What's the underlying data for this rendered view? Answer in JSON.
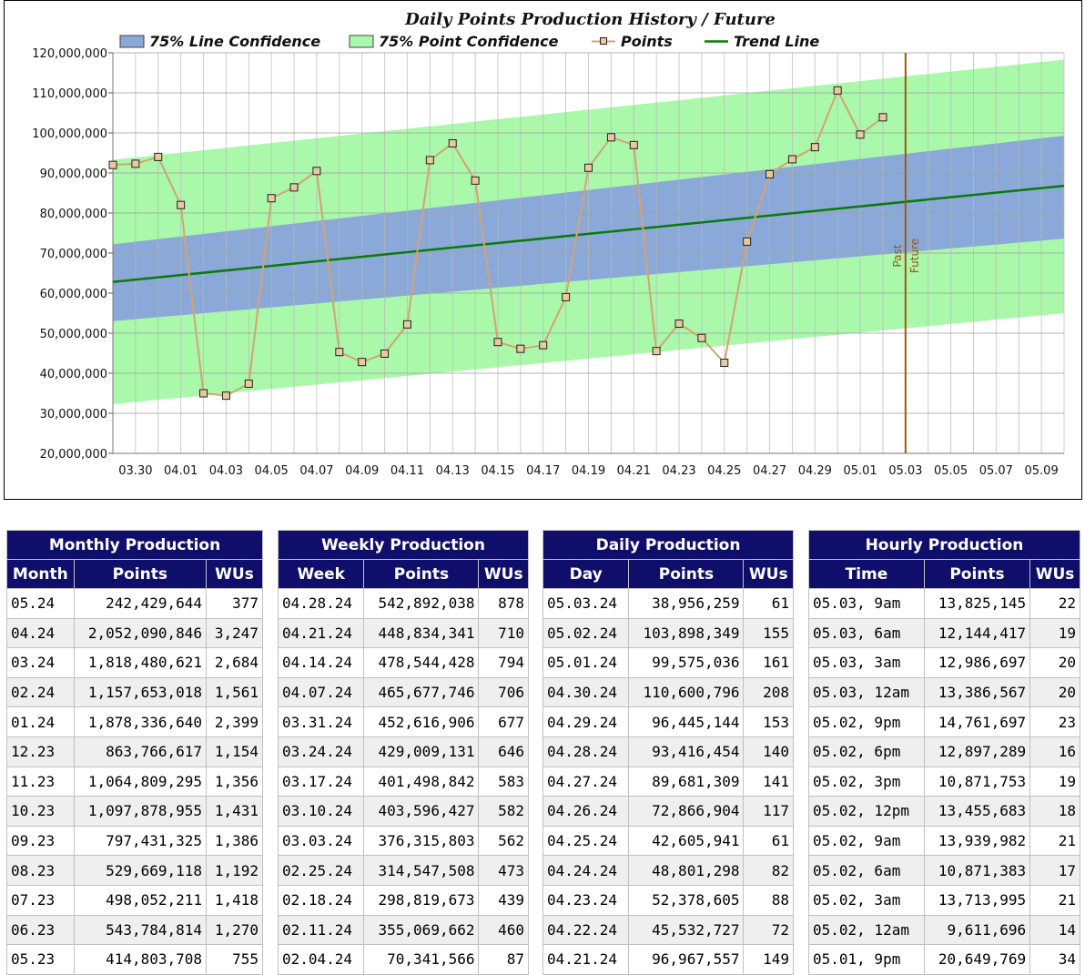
{
  "chart_data": {
    "type": "line",
    "title": "Daily Points Production History / Future",
    "legend": [
      "75% Line Confidence",
      "75% Point Confidence",
      "Points",
      "Trend Line"
    ],
    "colors": {
      "line_band": "#8aa9d8",
      "point_band": "#aaf8aa",
      "points": "#d4a373",
      "trend": "#0a7a0a",
      "divider": "#9c5a10"
    },
    "ylim": [
      20000000,
      120000000
    ],
    "yticks": [
      "20,000,000",
      "30,000,000",
      "40,000,000",
      "50,000,000",
      "60,000,000",
      "70,000,000",
      "80,000,000",
      "90,000,000",
      "100,000,000",
      "110,000,000",
      "120,000,000"
    ],
    "xlabels": [
      "03.30",
      "04.01",
      "04.03",
      "04.05",
      "04.07",
      "04.09",
      "04.11",
      "04.13",
      "04.15",
      "04.17",
      "04.19",
      "04.21",
      "04.23",
      "04.25",
      "04.27",
      "04.29",
      "05.01",
      "05.03",
      "05.05",
      "05.07",
      "05.09"
    ],
    "day_count": 42,
    "divider_day": 35,
    "past_label": "Past",
    "future_label": "Future",
    "points": [
      92000000,
      92300000,
      94000000,
      82000000,
      35000000,
      34400000,
      37400000,
      83700000,
      86400000,
      90500000,
      45300000,
      42800000,
      44900000,
      52200000,
      93200000,
      97400000,
      88100000,
      47800000,
      46100000,
      47000000,
      59000000,
      91300000,
      98900000,
      96967557,
      45532727,
      52378605,
      48801298,
      42605941,
      72866904,
      89681309,
      93416454,
      96445144,
      110600796,
      99575036,
      103898349
    ],
    "trend": {
      "start": 62800000,
      "end": 86800000
    },
    "line_band": {
      "lower_start": 53000000,
      "lower_end": 73600000,
      "upper_start": 72200000,
      "upper_end": 99300000
    },
    "point_band": {
      "lower_start": 32300000,
      "lower_end": 55000000,
      "upper_start": 93300000,
      "upper_end": 118300000
    }
  },
  "tables": {
    "monthly": {
      "title": "Monthly Production",
      "headers": [
        "Month",
        "Points",
        "WUs"
      ],
      "rows": [
        [
          "05.24",
          "242,429,644",
          "377"
        ],
        [
          "04.24",
          "2,052,090,846",
          "3,247"
        ],
        [
          "03.24",
          "1,818,480,621",
          "2,684"
        ],
        [
          "02.24",
          "1,157,653,018",
          "1,561"
        ],
        [
          "01.24",
          "1,878,336,640",
          "2,399"
        ],
        [
          "12.23",
          "863,766,617",
          "1,154"
        ],
        [
          "11.23",
          "1,064,809,295",
          "1,356"
        ],
        [
          "10.23",
          "1,097,878,955",
          "1,431"
        ],
        [
          "09.23",
          "797,431,325",
          "1,386"
        ],
        [
          "08.23",
          "529,669,118",
          "1,192"
        ],
        [
          "07.23",
          "498,052,211",
          "1,418"
        ],
        [
          "06.23",
          "543,784,814",
          "1,270"
        ],
        [
          "05.23",
          "414,803,708",
          "755"
        ]
      ]
    },
    "weekly": {
      "title": "Weekly Production",
      "headers": [
        "Week",
        "Points",
        "WUs"
      ],
      "rows": [
        [
          "04.28.24",
          "542,892,038",
          "878"
        ],
        [
          "04.21.24",
          "448,834,341",
          "710"
        ],
        [
          "04.14.24",
          "478,544,428",
          "794"
        ],
        [
          "04.07.24",
          "465,677,746",
          "706"
        ],
        [
          "03.31.24",
          "452,616,906",
          "677"
        ],
        [
          "03.24.24",
          "429,009,131",
          "646"
        ],
        [
          "03.17.24",
          "401,498,842",
          "583"
        ],
        [
          "03.10.24",
          "403,596,427",
          "582"
        ],
        [
          "03.03.24",
          "376,315,803",
          "562"
        ],
        [
          "02.25.24",
          "314,547,508",
          "473"
        ],
        [
          "02.18.24",
          "298,819,673",
          "439"
        ],
        [
          "02.11.24",
          "355,069,662",
          "460"
        ],
        [
          "02.04.24",
          "70,341,566",
          "87"
        ]
      ]
    },
    "daily": {
      "title": "Daily Production",
      "headers": [
        "Day",
        "Points",
        "WUs"
      ],
      "rows": [
        [
          "05.03.24",
          "38,956,259",
          "61"
        ],
        [
          "05.02.24",
          "103,898,349",
          "155"
        ],
        [
          "05.01.24",
          "99,575,036",
          "161"
        ],
        [
          "04.30.24",
          "110,600,796",
          "208"
        ],
        [
          "04.29.24",
          "96,445,144",
          "153"
        ],
        [
          "04.28.24",
          "93,416,454",
          "140"
        ],
        [
          "04.27.24",
          "89,681,309",
          "141"
        ],
        [
          "04.26.24",
          "72,866,904",
          "117"
        ],
        [
          "04.25.24",
          "42,605,941",
          "61"
        ],
        [
          "04.24.24",
          "48,801,298",
          "82"
        ],
        [
          "04.23.24",
          "52,378,605",
          "88"
        ],
        [
          "04.22.24",
          "45,532,727",
          "72"
        ],
        [
          "04.21.24",
          "96,967,557",
          "149"
        ]
      ]
    },
    "hourly": {
      "title": "Hourly Production",
      "headers": [
        "Time",
        "Points",
        "WUs"
      ],
      "rows": [
        [
          "05.03, 9am",
          "13,825,145",
          "22"
        ],
        [
          "05.03, 6am",
          "12,144,417",
          "19"
        ],
        [
          "05.03, 3am",
          "12,986,697",
          "20"
        ],
        [
          "05.03, 12am",
          "13,386,567",
          "20"
        ],
        [
          "05.02, 9pm",
          "14,761,697",
          "23"
        ],
        [
          "05.02, 6pm",
          "12,897,289",
          "16"
        ],
        [
          "05.02, 3pm",
          "10,871,753",
          "19"
        ],
        [
          "05.02, 12pm",
          "13,455,683",
          "18"
        ],
        [
          "05.02, 9am",
          "13,939,982",
          "21"
        ],
        [
          "05.02, 6am",
          "10,871,383",
          "17"
        ],
        [
          "05.02, 3am",
          "13,713,995",
          "21"
        ],
        [
          "05.02, 12am",
          "9,611,696",
          "14"
        ],
        [
          "05.01, 9pm",
          "20,649,769",
          "34"
        ]
      ]
    }
  }
}
